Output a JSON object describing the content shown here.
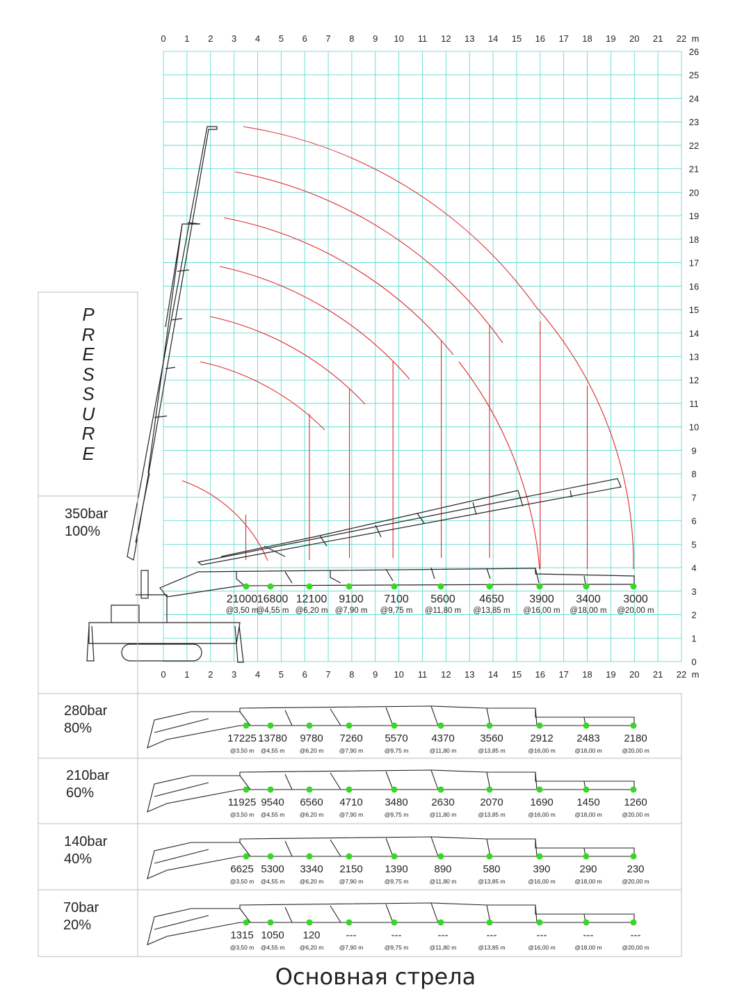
{
  "axis": {
    "unit": "m",
    "x_ticks": [
      "0",
      "1",
      "2",
      "3",
      "4",
      "5",
      "6",
      "7",
      "8",
      "9",
      "10",
      "11",
      "12",
      "13",
      "14",
      "15",
      "16",
      "17",
      "18",
      "19",
      "20",
      "21",
      "22"
    ],
    "y_ticks": [
      "0",
      "1",
      "2",
      "3",
      "4",
      "5",
      "6",
      "7",
      "8",
      "9",
      "10",
      "11",
      "12",
      "13",
      "14",
      "15",
      "16",
      "17",
      "18",
      "19",
      "20",
      "21",
      "22",
      "23",
      "24",
      "25",
      "26"
    ],
    "xlim": [
      0,
      22
    ],
    "ylim": [
      0,
      26
    ],
    "grid": true
  },
  "colors": {
    "grid": "#4fd8c8",
    "arcs": "#e0262b",
    "points": "#39d62a",
    "lines": "#231f20",
    "table_border": "#bdbdbd"
  },
  "pressure_label": [
    "P",
    "R",
    "E",
    "S",
    "S",
    "U",
    "R",
    "E"
  ],
  "radii": [
    "@3,50 m",
    "@4,55 m",
    "@6,20 m",
    "@7,90 m",
    "@9,75 m",
    "@11,80 m",
    "@13,85 m",
    "@16,00 m",
    "@18,00 m",
    "@20,00 m"
  ],
  "radius_values_m": [
    3.5,
    4.55,
    6.2,
    7.9,
    9.75,
    11.8,
    13.85,
    16.0,
    18.0,
    20.0
  ],
  "rows": [
    {
      "bar": "350bar",
      "percent": "100%",
      "loads": [
        "21000",
        "16800",
        "12100",
        "9100",
        "7100",
        "5600",
        "4650",
        "3900",
        "3400",
        "3000"
      ]
    },
    {
      "bar": "280bar",
      "percent": "80%",
      "loads": [
        "17225",
        "13780",
        "9780",
        "7260",
        "5570",
        "4370",
        "3560",
        "2912",
        "2483",
        "2180"
      ]
    },
    {
      "bar": "210bar",
      "percent": "60%",
      "loads": [
        "11925",
        "9540",
        "6560",
        "4710",
        "3480",
        "2630",
        "2070",
        "1690",
        "1450",
        "1260"
      ]
    },
    {
      "bar": "140bar",
      "percent": "40%",
      "loads": [
        "6625",
        "5300",
        "3340",
        "2150",
        "1390",
        "890",
        "580",
        "390",
        "290",
        "230"
      ]
    },
    {
      "bar": "70bar",
      "percent": "20%",
      "loads": [
        "1315",
        "1050",
        "120",
        "---",
        "---",
        "---",
        "---",
        "---",
        "---",
        "---"
      ]
    }
  ],
  "title": "Основная стрела"
}
